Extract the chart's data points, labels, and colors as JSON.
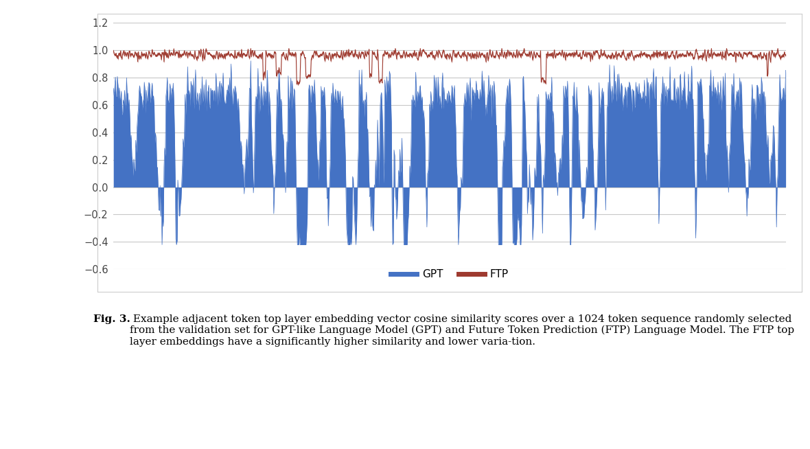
{
  "n_points": 1024,
  "gpt_color": "#4472C4",
  "ftp_color": "#9E3A2F",
  "ylim": [
    -0.6,
    1.2
  ],
  "yticks": [
    -0.6,
    -0.4,
    -0.2,
    0,
    0.2,
    0.4,
    0.6,
    0.8,
    1.0,
    1.2
  ],
  "legend_labels": [
    "GPT",
    "FTP"
  ],
  "caption_bold": "Fig. 3.",
  "caption_normal": " Example adjacent token top layer embedding vector cosine similarity scores over a 1024 token sequence randomly selected from the validation set for GPT-like Language Model (GPT) and Future Token Prediction (FTP) Language Model. The FTP top layer embeddings have a significantly higher similarity and lower varia-tion.",
  "bg_color": "#ffffff",
  "plot_bg_color": "#ffffff",
  "grid_color": "#c8c8c8",
  "seed": 42
}
